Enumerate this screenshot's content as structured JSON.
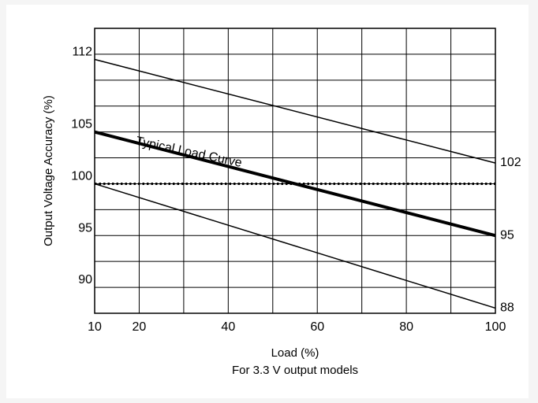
{
  "chart_data": {
    "type": "line",
    "title": "",
    "xlabel": "Load (%)",
    "ylabel": "Output Voltage Accuracy (%)",
    "caption": "For 3.3 V output models",
    "xlim": [
      10,
      100
    ],
    "ylim": [
      87.5,
      115
    ],
    "grid": true,
    "x_ticks": [
      "10",
      "20",
      "40",
      "60",
      "80",
      "100"
    ],
    "y_ticks": [
      "90",
      "95",
      "100",
      "105",
      "112"
    ],
    "series": [
      {
        "x": [
          10,
          100
        ],
        "y": [
          112,
          102
        ],
        "stroke": "#000000",
        "weight": "thin",
        "style": "solid"
      },
      {
        "x": [
          10,
          100
        ],
        "y": [
          105,
          95
        ],
        "stroke": "#000000",
        "weight": "bold",
        "style": "solid"
      },
      {
        "x": [
          10,
          100
        ],
        "y": [
          100,
          100
        ],
        "stroke": "#000000",
        "weight": "medium",
        "style": "dotted"
      },
      {
        "x": [
          10,
          100
        ],
        "y": [
          100,
          88
        ],
        "stroke": "#000000",
        "weight": "thin",
        "style": "solid"
      }
    ],
    "annotations": [
      {
        "text": "Typical Load Curve",
        "x": 31,
        "y": 102.7,
        "angle_deg": 12
      }
    ],
    "end_labels": [
      {
        "text": "102",
        "y": 102
      },
      {
        "text": "95",
        "y": 95
      },
      {
        "text": "88",
        "y": 88
      }
    ]
  }
}
